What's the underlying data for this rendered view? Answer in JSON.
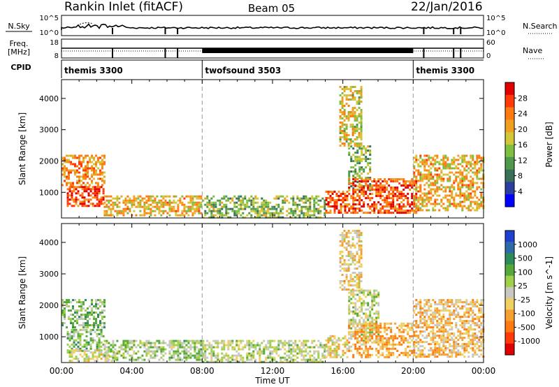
{
  "header": {
    "station": "Rankin Inlet (fitACF)",
    "beam": "Beam 05",
    "date": "22/Jan/2016"
  },
  "nsky_panel": {
    "left_label": "N.Sky",
    "right_label": "N.Search",
    "left_ticks": [
      "10^5",
      "10^0"
    ],
    "right_ticks": [
      "10^5",
      "10^0"
    ]
  },
  "freq_panel": {
    "left_label_1": "Freq.",
    "left_label_2": "[MHz]",
    "right_label": "Nave",
    "left_ticks": [
      "18",
      "8"
    ],
    "right_ticks": [
      "60",
      "0"
    ]
  },
  "cpid_panel": {
    "label": "CPID",
    "segments": [
      {
        "name": "themis 3300",
        "start_hour": 0,
        "end_hour": 8
      },
      {
        "name": "twofsound 3503",
        "start_hour": 8,
        "end_hour": 20
      },
      {
        "name": "themis 3300",
        "start_hour": 20,
        "end_hour": 24
      }
    ]
  },
  "time_axis": {
    "label": "Time UT",
    "ticks": [
      "00:00",
      "04:00",
      "08:00",
      "12:00",
      "16:00",
      "20:00",
      "00:00"
    ],
    "range_hours": [
      0,
      24
    ]
  },
  "y_axis": {
    "label": "Slant Range [km]",
    "ticks": [
      "1000",
      "2000",
      "3000",
      "4000"
    ],
    "range_km": [
      180,
      4600
    ]
  },
  "chart_data": [
    {
      "type": "heatmap",
      "title": "",
      "xlabel": "Time UT",
      "ylabel": "Slant Range [km]",
      "colorbar_label": "Power [dB]",
      "colorbar_ticks": [
        "4",
        "8",
        "12",
        "16",
        "20",
        "24",
        "28"
      ],
      "colorbar_range": [
        0,
        32
      ],
      "colorbar_colors": [
        "#0000ff",
        "#2c3fa0",
        "#3a6f5a",
        "#4f9a4a",
        "#7fbf3f",
        "#d4c63a",
        "#f0a020",
        "#ff7a10",
        "#ff3a08",
        "#e00000"
      ],
      "regions": [
        {
          "t": [
            0.0,
            2.4
          ],
          "r": [
            1250,
            2200
          ],
          "level": 22
        },
        {
          "t": [
            0.3,
            2.4
          ],
          "r": [
            550,
            1200
          ],
          "level": 27
        },
        {
          "t": [
            2.4,
            7.9
          ],
          "r": [
            280,
            900
          ],
          "level": 20
        },
        {
          "t": [
            8.0,
            15.0
          ],
          "r": [
            220,
            900
          ],
          "level": 14
        },
        {
          "t": [
            15.0,
            16.3
          ],
          "r": [
            350,
            1050
          ],
          "level": 26
        },
        {
          "t": [
            16.3,
            17.5
          ],
          "r": [
            1000,
            2500
          ],
          "level": 14
        },
        {
          "t": [
            16.3,
            20.2
          ],
          "r": [
            350,
            1450
          ],
          "level": 26
        },
        {
          "t": [
            20.0,
            24.0
          ],
          "r": [
            400,
            2200
          ],
          "level": 20
        },
        {
          "t": [
            15.8,
            17.0
          ],
          "r": [
            2500,
            4400
          ],
          "level": 18
        }
      ]
    },
    {
      "type": "heatmap",
      "title": "",
      "xlabel": "Time UT",
      "ylabel": "Slant Range [km]",
      "colorbar_label": "Velocity [m s^-1]",
      "colorbar_ticks": [
        "1000",
        "500",
        "100",
        "25",
        "-25",
        "-100",
        "-500",
        "-1000"
      ],
      "colorbar_range": [
        -1200,
        1200
      ],
      "colorbar_colors": [
        "#1f3fd0",
        "#2f6aa8",
        "#2d8a5a",
        "#55a83a",
        "#9fd04a",
        "#c8c8c0",
        "#f0d060",
        "#f5a030",
        "#ff7a10",
        "#ff3a08",
        "#e00000"
      ],
      "regions": [
        {
          "t": [
            0.0,
            2.4
          ],
          "r": [
            1300,
            2200
          ],
          "level": 300
        },
        {
          "t": [
            0.3,
            2.4
          ],
          "r": [
            550,
            1250
          ],
          "level": 300
        },
        {
          "t": [
            0.3,
            3.0
          ],
          "r": [
            250,
            600
          ],
          "level": 0
        },
        {
          "t": [
            2.4,
            8.0
          ],
          "r": [
            300,
            900
          ],
          "level": 200
        },
        {
          "t": [
            8.0,
            15.0
          ],
          "r": [
            220,
            900
          ],
          "level": 60
        },
        {
          "t": [
            15.0,
            16.3
          ],
          "r": [
            350,
            1050
          ],
          "level": -120
        },
        {
          "t": [
            16.3,
            18.0
          ],
          "r": [
            900,
            2500
          ],
          "level": 80
        },
        {
          "t": [
            16.3,
            20.2
          ],
          "r": [
            350,
            1450
          ],
          "level": -400
        },
        {
          "t": [
            20.0,
            24.0
          ],
          "r": [
            400,
            2200
          ],
          "level": -300
        },
        {
          "t": [
            15.8,
            17.0
          ],
          "r": [
            2500,
            4400
          ],
          "level": -200
        }
      ]
    }
  ]
}
